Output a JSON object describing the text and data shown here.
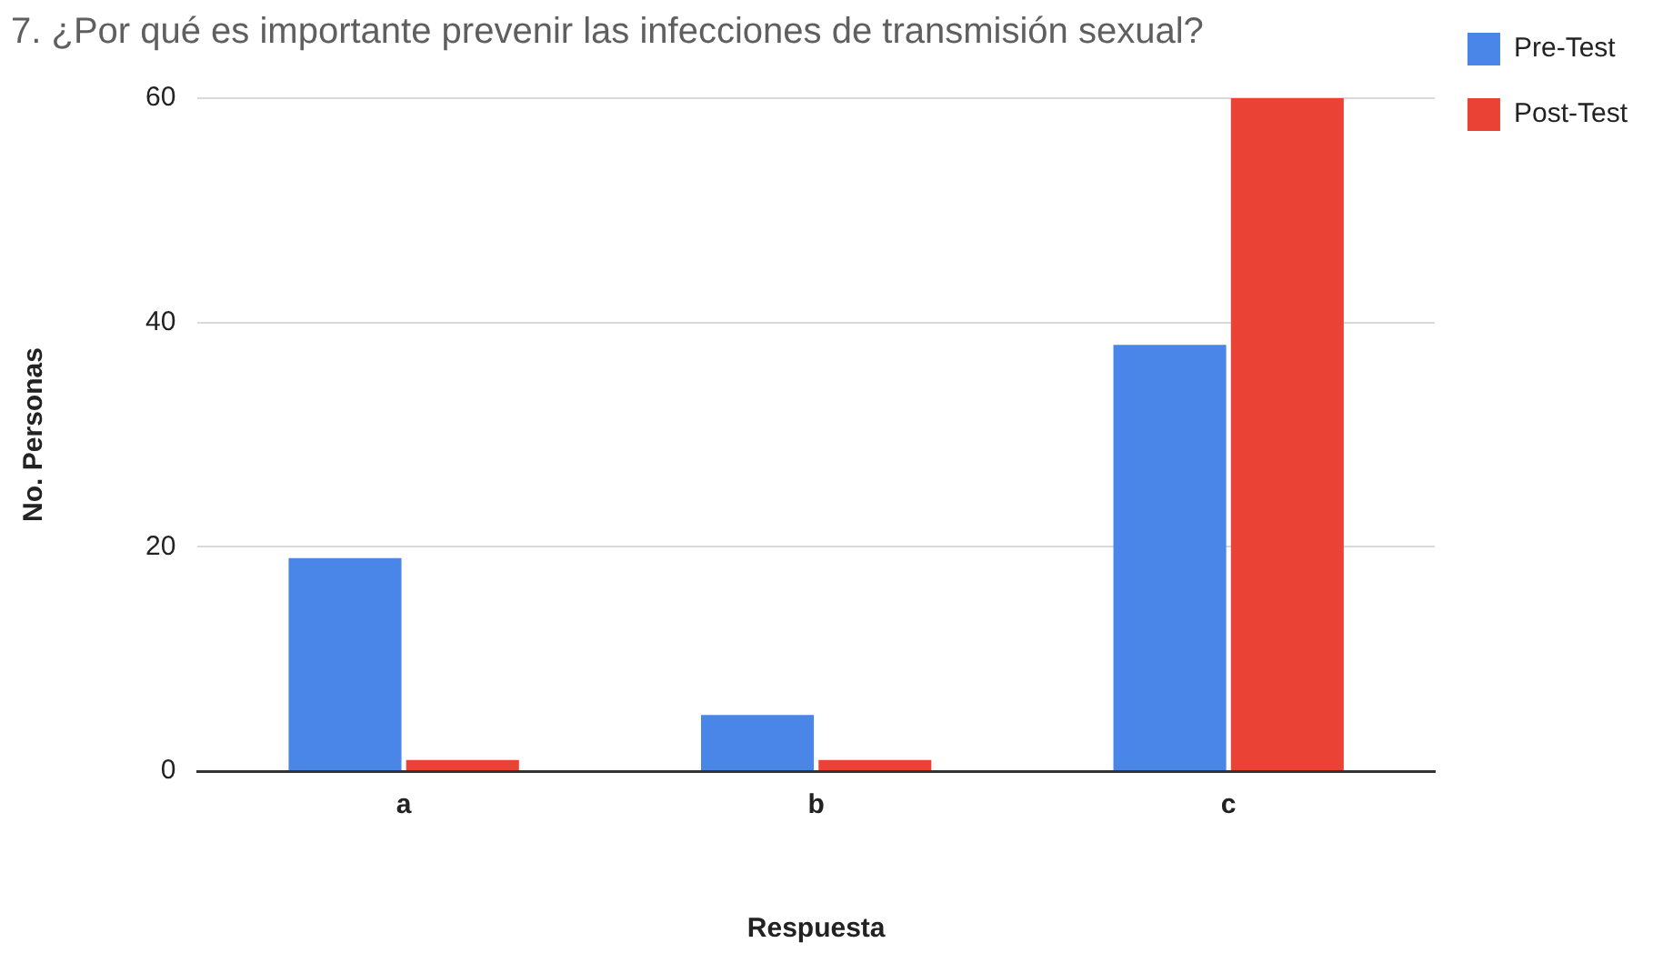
{
  "chart_data": {
    "type": "bar",
    "title": "7. ¿Por qué es importante prevenir las infecciones de transmisión sexual?",
    "xlabel": "Respuesta",
    "ylabel": "No. Personas",
    "categories": [
      "a",
      "b",
      "c"
    ],
    "series": [
      {
        "name": "Pre-Test",
        "color": "#4a86e8",
        "values": [
          19,
          5,
          38
        ]
      },
      {
        "name": "Post-Test",
        "color": "#ea4335",
        "values": [
          1,
          1,
          60
        ]
      }
    ],
    "ylim": [
      0,
      60
    ],
    "yticks": [
      0,
      20,
      40,
      60
    ],
    "grid": "y",
    "legend": "top right"
  }
}
